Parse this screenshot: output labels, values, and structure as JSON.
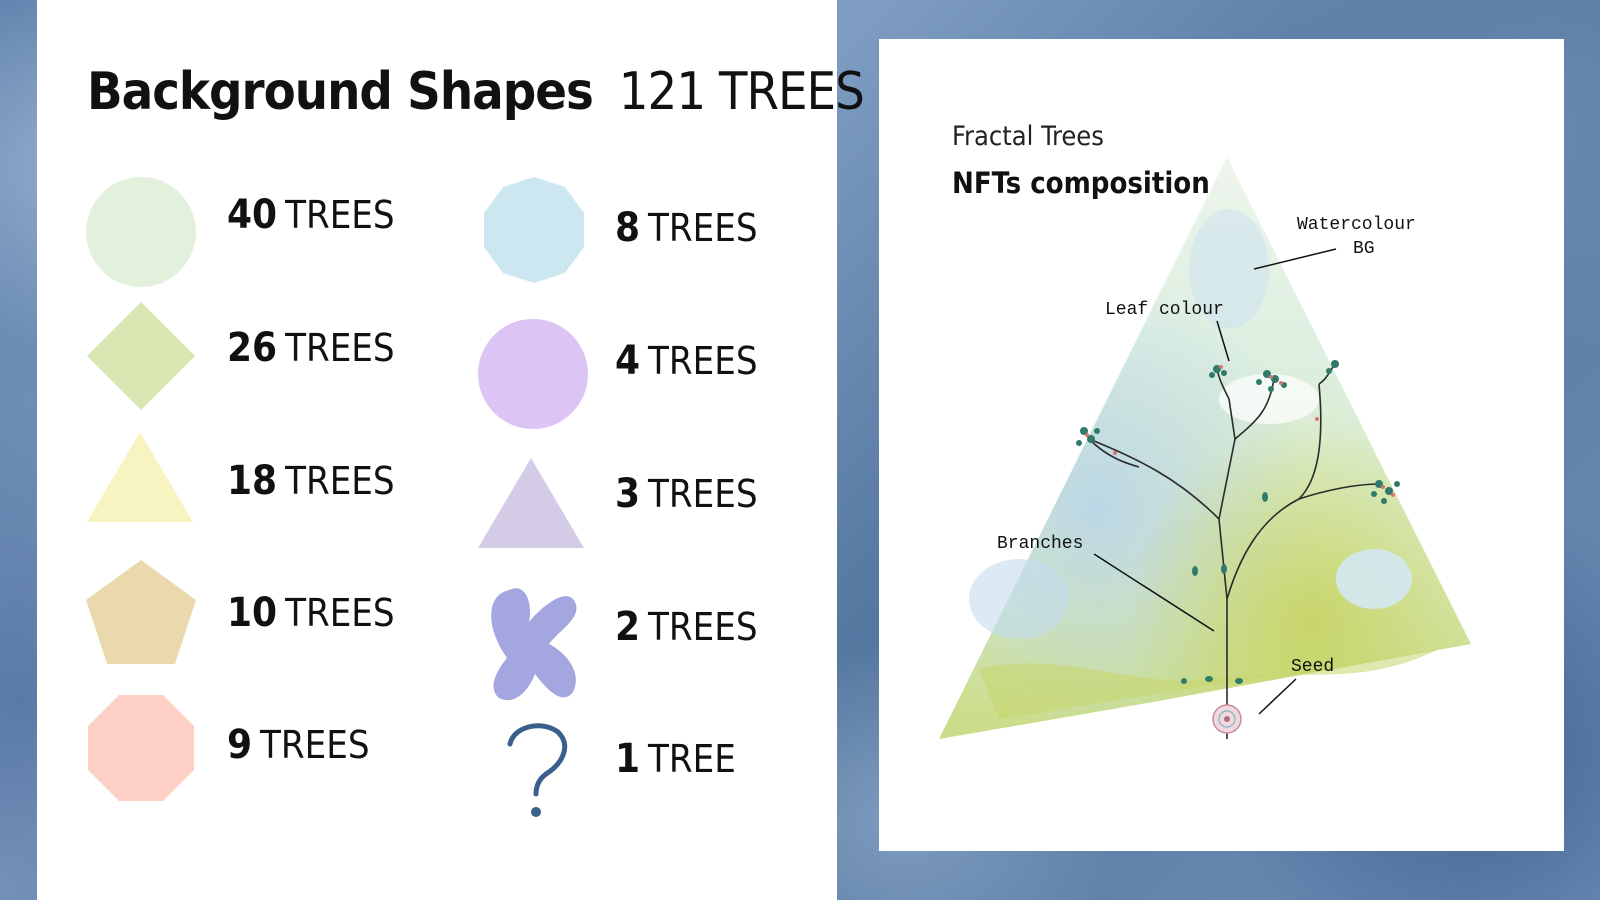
{
  "title": {
    "bold": "Background Shapes",
    "light": "121 TREES"
  },
  "shapes": [
    {
      "num": "40",
      "word": "TREES",
      "shape": "circle",
      "color": "#e3f0db"
    },
    {
      "num": "26",
      "word": "TREES",
      "shape": "diamond",
      "color": "#d8e6b2"
    },
    {
      "num": "18",
      "word": "TREES",
      "shape": "triangle",
      "color": "#f8f4c2"
    },
    {
      "num": "10",
      "word": "TREES",
      "shape": "pentagon",
      "color": "#ead9ac"
    },
    {
      "num": "9",
      "word": "TREES",
      "shape": "octagon",
      "color": "#fdd0c6"
    },
    {
      "num": "8",
      "word": "TREES",
      "shape": "decagon",
      "color": "#cde7f0"
    },
    {
      "num": "4",
      "word": "TREES",
      "shape": "circle",
      "color": "#dcc4f5"
    },
    {
      "num": "3",
      "word": "TREES",
      "shape": "triangle",
      "color": "#d4cce6"
    },
    {
      "num": "2",
      "word": "TREES",
      "shape": "blob",
      "color": "#a3a6df"
    },
    {
      "num": "1",
      "word": "TREE",
      "shape": "question-mark",
      "color": "#3a5f8c"
    }
  ],
  "composition": {
    "title": "Fractal Trees",
    "subtitle": "NFTs composition",
    "annotations": {
      "watercolour_line1": "Watercolour",
      "watercolour_line2": "BG",
      "leaf": "Leaf colour",
      "branches": "Branches",
      "seed": "Seed"
    }
  }
}
